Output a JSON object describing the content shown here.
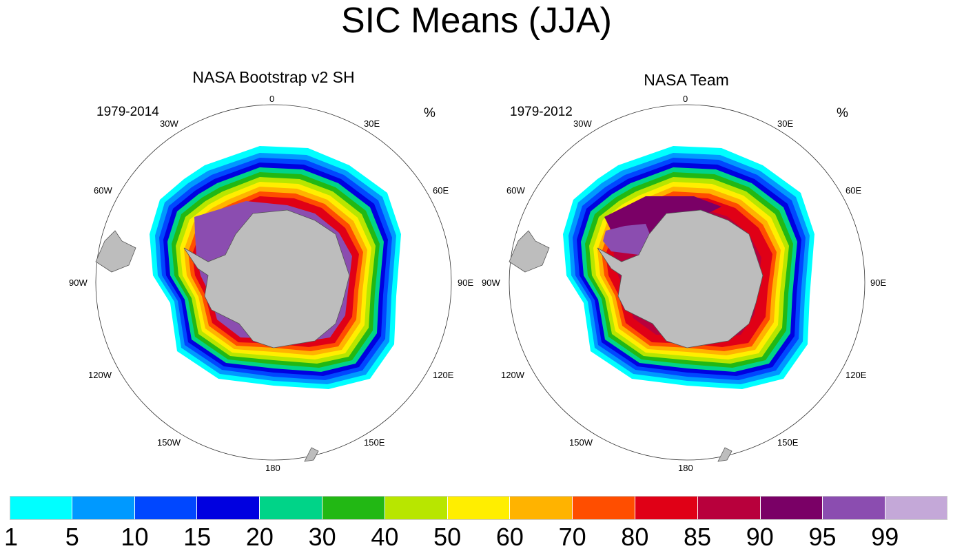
{
  "title": "SIC Means (JJA)",
  "panels": [
    {
      "title": "NASA Bootstrap v2 SH",
      "period": "1979-2014",
      "unit": "%"
    },
    {
      "title": "NASA Team",
      "period": "1979-2012",
      "unit": "%"
    }
  ],
  "longitude_labels": {
    "n0": "0",
    "e30": "30E",
    "e60": "60E",
    "e90": "90E",
    "e120": "120E",
    "e150": "150E",
    "s180": "180",
    "w150": "150W",
    "w120": "120W",
    "w90": "90W",
    "w60": "60W",
    "w30": "30W"
  },
  "colorbar": {
    "colors": [
      "#00ffff",
      "#0099ff",
      "#0047ff",
      "#0000e0",
      "#00d488",
      "#22b814",
      "#b8e600",
      "#ffee00",
      "#ffb300",
      "#ff4e00",
      "#e00016",
      "#b8003c",
      "#7a0066",
      "#8b4db0",
      "#c4a8d8"
    ],
    "labels": [
      "1",
      "5",
      "10",
      "15",
      "20",
      "30",
      "40",
      "50",
      "60",
      "70",
      "80",
      "85",
      "90",
      "95",
      "99"
    ]
  }
}
